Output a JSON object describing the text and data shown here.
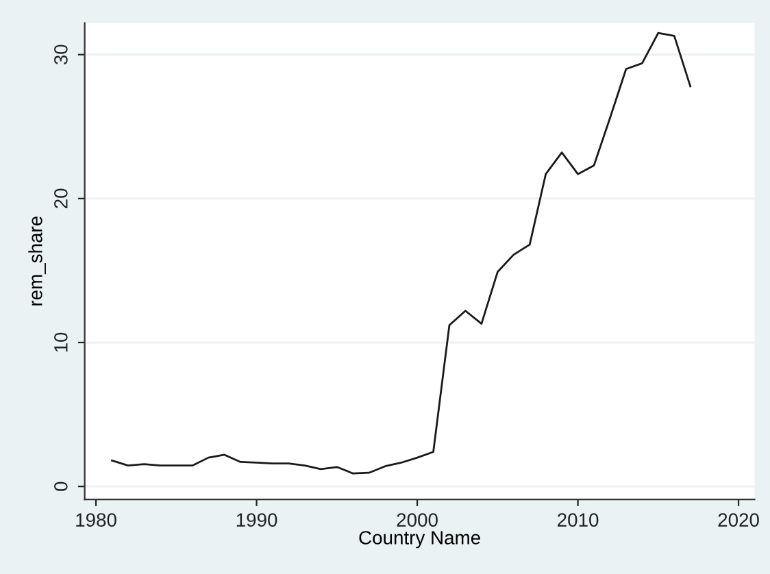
{
  "chart_data": {
    "type": "line",
    "xlabel": "Country Name",
    "ylabel": "rem_share",
    "x": [
      1981,
      1982,
      1983,
      1984,
      1985,
      1986,
      1987,
      1988,
      1989,
      1990,
      1991,
      1992,
      1993,
      1994,
      1995,
      1996,
      1997,
      1998,
      1999,
      2000,
      2001,
      2002,
      2003,
      2004,
      2005,
      2006,
      2007,
      2008,
      2009,
      2010,
      2011,
      2012,
      2013,
      2014,
      2015,
      2016,
      2017
    ],
    "series": [
      {
        "color": "#1a1a1a",
        "values": [
          1.8,
          1.45,
          1.55,
          1.45,
          1.45,
          1.45,
          2.0,
          2.2,
          1.7,
          1.65,
          1.6,
          1.6,
          1.45,
          1.2,
          1.35,
          0.9,
          0.95,
          1.4,
          1.65,
          2.0,
          2.4,
          11.2,
          12.2,
          11.3,
          14.9,
          16.1,
          16.8,
          21.7,
          23.2,
          21.7,
          22.3,
          25.6,
          29.0,
          29.4,
          31.5,
          31.3,
          27.8
        ]
      }
    ],
    "xlim": [
      1979.3,
      2021
    ],
    "ylim": [
      -0.9,
      32.2
    ],
    "xticks": [
      1980,
      1990,
      2000,
      2010,
      2020
    ],
    "yticks": [
      0,
      10,
      20,
      30
    ],
    "grid": "y",
    "marker": "none",
    "line_style": "solid"
  }
}
